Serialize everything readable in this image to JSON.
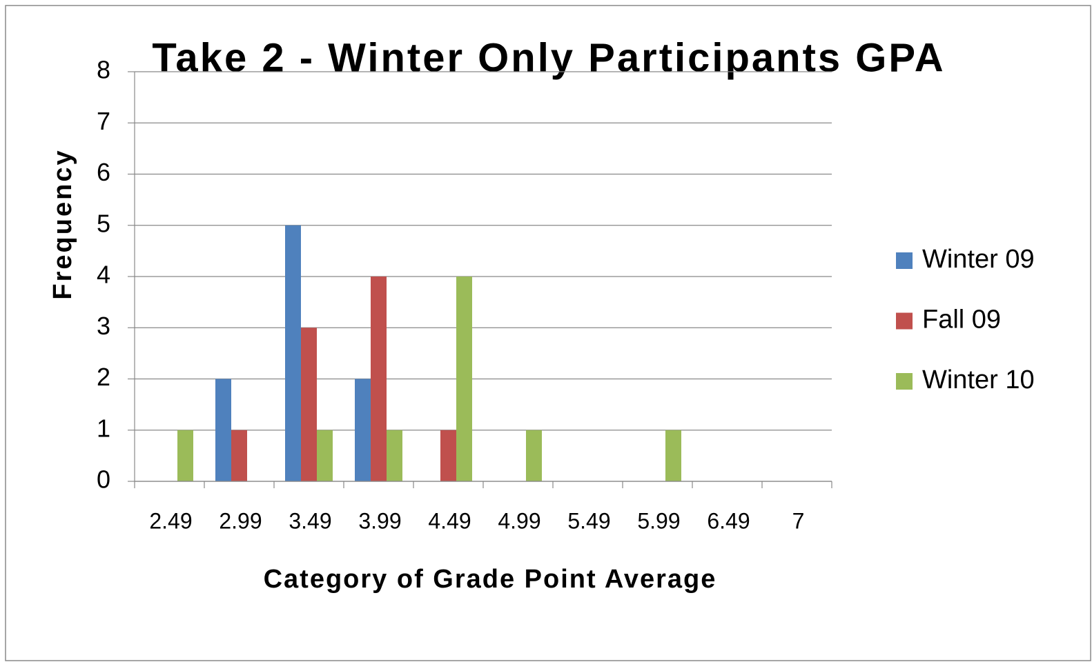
{
  "chart_data": {
    "type": "bar",
    "title": "Take 2 - Winter Only Participants GPA",
    "x_label": "Category of Grade Point Average",
    "y_label": "Frequency",
    "categories": [
      "2.49",
      "2.99",
      "3.49",
      "3.99",
      "4.49",
      "4.99",
      "5.49",
      "5.99",
      "6.49",
      "7"
    ],
    "series": [
      {
        "name": "Winter 09",
        "color": "#4f81bd",
        "values": [
          0,
          2,
          5,
          2,
          0,
          0,
          0,
          0,
          0,
          0
        ]
      },
      {
        "name": "Fall 09",
        "color": "#c0504d",
        "values": [
          0,
          1,
          3,
          4,
          1,
          0,
          0,
          0,
          0,
          0
        ]
      },
      {
        "name": "Winter 10",
        "color": "#9bbb59",
        "values": [
          1,
          0,
          1,
          1,
          4,
          1,
          0,
          1,
          0,
          0
        ]
      }
    ],
    "ylim": [
      0,
      8
    ],
    "yticks": [
      0,
      1,
      2,
      3,
      4,
      5,
      6,
      7,
      8
    ],
    "grid": true,
    "legend": "right"
  }
}
